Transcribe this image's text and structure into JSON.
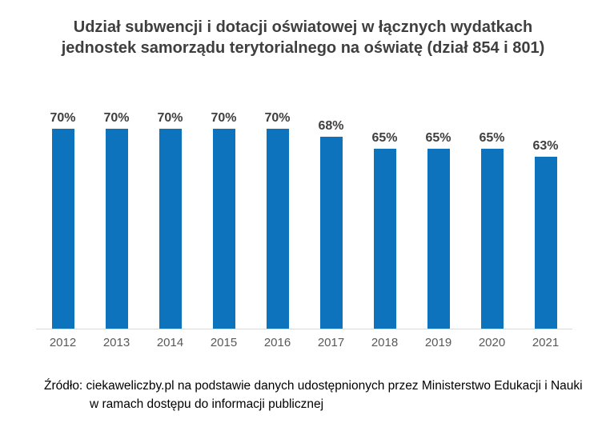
{
  "chart_data": {
    "type": "bar",
    "title": "Udział subwencji i dotacji oświatowej w łącznych wydatkach\njednostek samorządu terytorialnego na oświatę (dział 854 i 801)",
    "categories": [
      "2012",
      "2013",
      "2014",
      "2015",
      "2016",
      "2017",
      "2018",
      "2019",
      "2020",
      "2021"
    ],
    "values": [
      70,
      70,
      70,
      70,
      70,
      68,
      65,
      65,
      65,
      63
    ],
    "value_labels": [
      "70%",
      "70%",
      "70%",
      "70%",
      "70%",
      "68%",
      "65%",
      "65%",
      "65%",
      "63%"
    ],
    "xlabel": "",
    "ylabel": "",
    "ylim": [
      20,
      75
    ],
    "grid": false,
    "legend": false,
    "data_label_position": "above-bar"
  },
  "source_note": "Źródło: ciekaweliczby.pl na podstawie danych udostępnionych przez Ministerstwo Edukacji i Nauki\nw ramach dostępu do informacji publicznej",
  "colors": {
    "bar": "#0E73BD",
    "title_text": "#3F3F3F",
    "label_text": "#404040",
    "tick_text": "#595959",
    "axis_line": "#D9D9D9",
    "background": "#FFFFFF"
  }
}
